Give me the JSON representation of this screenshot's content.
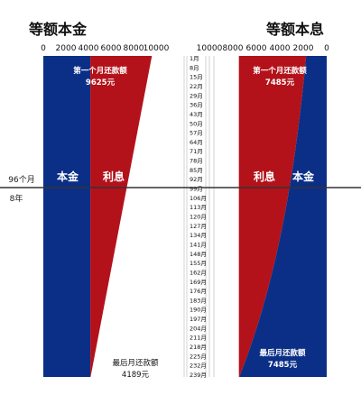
{
  "chart_data": [
    {
      "type": "area",
      "title": "等额本金",
      "x_unit": "月",
      "ticks": [
        "0",
        "2000",
        "4000",
        "6000",
        "8000",
        "10000"
      ],
      "xlim": [
        0,
        10000
      ],
      "series": [
        {
          "name": "本金",
          "months": [
            1,
            240
          ],
          "values": [
            4167,
            4167
          ]
        },
        {
          "name": "利息",
          "months": [
            1,
            240
          ],
          "values": [
            5458,
            22
          ]
        }
      ],
      "monthly_payment_first": 9625,
      "monthly_payment_last": 4189,
      "annotations": {
        "first_label": "第一个月还款额",
        "first_value": "9625元",
        "last_label": "最后月还款额",
        "last_value": "4189元",
        "principal_label": "本金",
        "interest_label": "利息"
      }
    },
    {
      "type": "area",
      "title": "等额本息",
      "x_unit": "月",
      "ticks": [
        "10000",
        "8000",
        "6000",
        "4000",
        "2000",
        "0"
      ],
      "xlim": [
        0,
        10000
      ],
      "series": [
        {
          "name": "本金",
          "months": [
            1,
            240
          ],
          "values": [
            1752,
            7450
          ]
        },
        {
          "name": "利息",
          "months": [
            1,
            240
          ],
          "values": [
            5733,
            35
          ]
        }
      ],
      "monthly_payment": 7485,
      "annotations": {
        "first_label": "第一个月还款额",
        "first_value": "7485元",
        "last_label": "最后月还款额",
        "last_value": "7485元",
        "principal_label": "本金",
        "interest_label": "利息"
      }
    }
  ],
  "months": [
    "1月",
    "8月",
    "15月",
    "22月",
    "29月",
    "36月",
    "43月",
    "50月",
    "57月",
    "64月",
    "71月",
    "78月",
    "85月",
    "92月",
    "99月",
    "106月",
    "113月",
    "120月",
    "127月",
    "134月",
    "141月",
    "148月",
    "155月",
    "162月",
    "169月",
    "176月",
    "183月",
    "190月",
    "197月",
    "204月",
    "211月",
    "218月",
    "225月",
    "232月",
    "239月"
  ],
  "marker": {
    "months": "96个月",
    "years": "8年"
  },
  "colors": {
    "principal": "#0b2f86",
    "interest": "#b3121a"
  }
}
